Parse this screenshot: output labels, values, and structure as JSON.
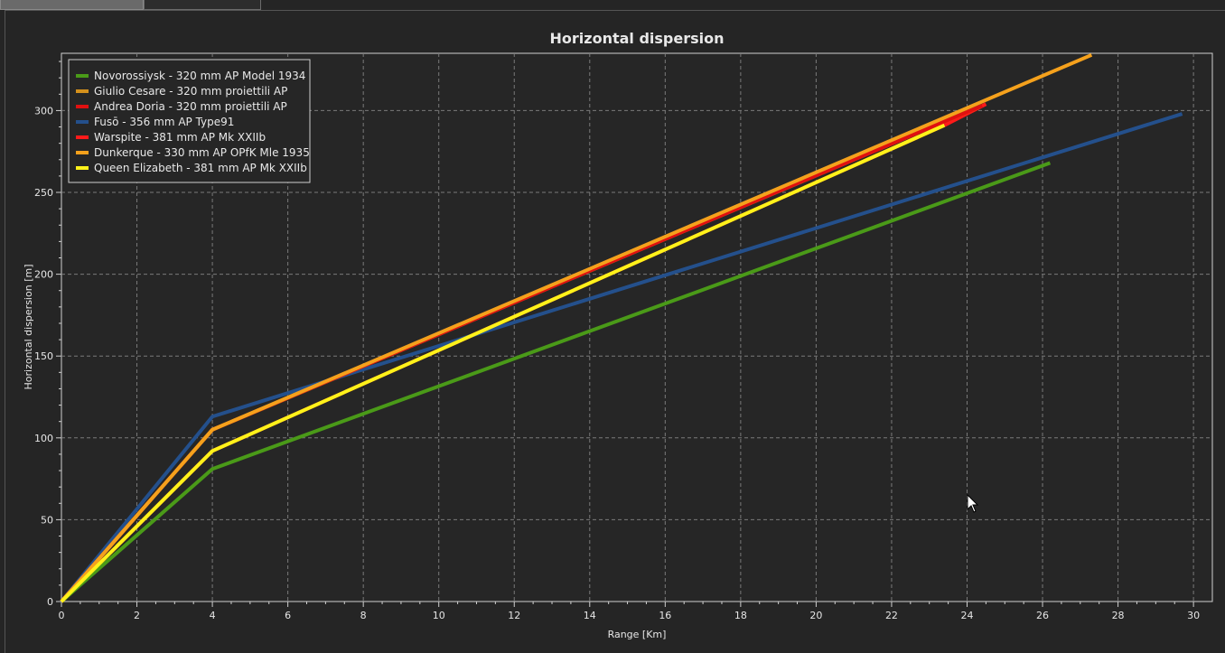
{
  "chart_data": {
    "type": "line",
    "title": "Horizontal dispersion",
    "xlabel": "Range [Km]",
    "ylabel": "Horizontal dispersion [m]",
    "xlim": [
      0,
      30.5
    ],
    "ylim": [
      0,
      335
    ],
    "x_ticks": [
      0,
      2,
      4,
      6,
      8,
      10,
      12,
      14,
      16,
      18,
      20,
      22,
      24,
      26,
      28,
      30
    ],
    "y_ticks": [
      0,
      50,
      100,
      150,
      200,
      250,
      300
    ],
    "grid": true,
    "legend_position": "top-left",
    "series": [
      {
        "name": "Novorossiysk - 320 mm AP Model 1934",
        "color": "#4a9a18",
        "x": [
          0,
          4,
          26.2
        ],
        "y": [
          0,
          81,
          268
        ]
      },
      {
        "name": "Giulio Cesare - 320 mm proiettili AP",
        "color": "#d4901c",
        "x": [
          0,
          4,
          24.3
        ],
        "y": [
          0,
          105,
          302
        ]
      },
      {
        "name": "Andrea Doria - 320 mm proiettili AP",
        "color": "#e01010",
        "x": [
          0,
          4,
          24.4
        ],
        "y": [
          0,
          105,
          303
        ]
      },
      {
        "name": "Fusō - 356 mm AP Type91",
        "color": "#24508c",
        "x": [
          0,
          4,
          29.7
        ],
        "y": [
          0,
          113,
          298
        ]
      },
      {
        "name": "Warspite - 381 mm AP Mk XXIIb",
        "color": "#ff1a1a",
        "x": [
          0,
          4,
          23.4,
          24.5
        ],
        "y": [
          0,
          92,
          291,
          304
        ]
      },
      {
        "name": "Dunkerque - 330 mm AP OPfK Mle 1935",
        "color": "#f5a11c",
        "x": [
          0,
          4,
          27.3
        ],
        "y": [
          0,
          105,
          334
        ]
      },
      {
        "name": "Queen Elizabeth - 381 mm AP Mk XXIIb",
        "color": "#fff21a",
        "x": [
          0,
          4,
          23.4
        ],
        "y": [
          0,
          92,
          291
        ]
      }
    ]
  }
}
